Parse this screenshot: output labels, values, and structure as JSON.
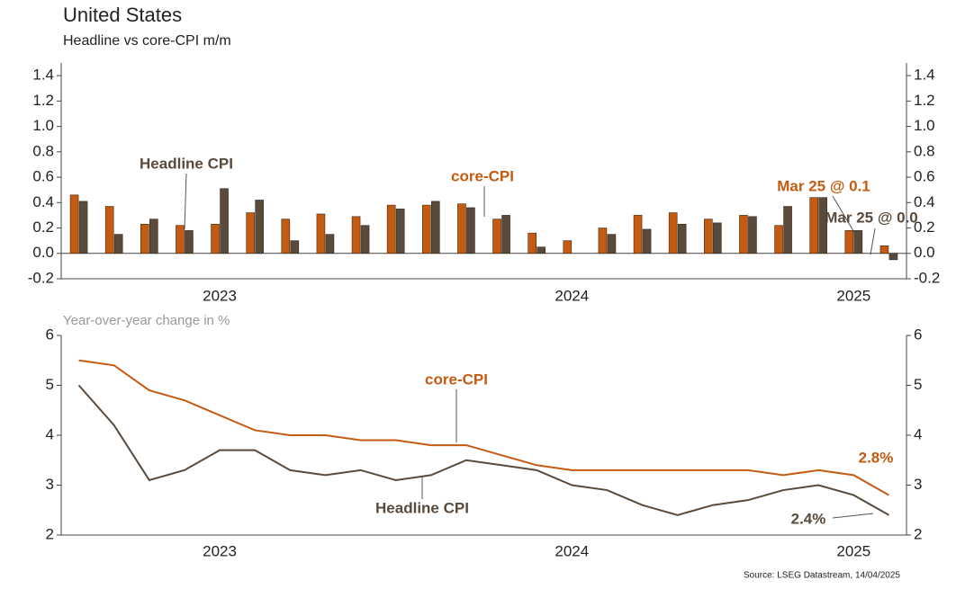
{
  "title": "United States",
  "chart_data": [
    {
      "type": "bar",
      "subtitle": "Headline vs core-CPI m/m",
      "categories": [
        null,
        null,
        null,
        null,
        "2023",
        null,
        null,
        null,
        null,
        null,
        null,
        null,
        null,
        null,
        "2024",
        null,
        null,
        null,
        null,
        null,
        null,
        null,
        "2025",
        null
      ],
      "series": [
        {
          "name": "core-CPI",
          "color": "#c55a11",
          "values": [
            0.46,
            0.37,
            0.23,
            0.22,
            0.23,
            0.32,
            0.27,
            0.31,
            0.29,
            0.38,
            0.38,
            0.39,
            0.27,
            0.16,
            0.1,
            0.2,
            0.3,
            0.32,
            0.27,
            0.3,
            0.22,
            0.44,
            0.18,
            0.06
          ]
        },
        {
          "name": "Headline CPI",
          "color": "#594a3c",
          "values": [
            0.41,
            0.15,
            0.27,
            0.18,
            0.51,
            0.42,
            0.1,
            0.15,
            0.22,
            0.35,
            0.41,
            0.36,
            0.3,
            0.05,
            0,
            0.15,
            0.19,
            0.23,
            0.24,
            0.29,
            0.37,
            0.44,
            0.18,
            -0.05
          ]
        }
      ],
      "ylim": [
        -0.2,
        1.5
      ],
      "yticks": [
        -0.2,
        {
          "value": 0,
          "label": "0.0"
        },
        0.2,
        0.4,
        0.6,
        0.8,
        {
          "value": 1,
          "label": "1.0"
        },
        1.2,
        1.4
      ],
      "annotations": [
        {
          "text": "Mar 25 @ 0.1",
          "color": "#c55a11"
        },
        {
          "text": "Mar 25 @ 0.0",
          "color": "#594a3c"
        }
      ]
    },
    {
      "type": "line",
      "subtitle": "Year-over-year change in %",
      "categories": [
        null,
        null,
        null,
        null,
        "2023",
        null,
        null,
        null,
        null,
        null,
        null,
        null,
        null,
        null,
        "2024",
        null,
        null,
        null,
        null,
        null,
        null,
        null,
        "2025",
        null
      ],
      "series": [
        {
          "name": "core-CPI",
          "color": "#c55a11",
          "values": [
            5.5,
            5.4,
            4.9,
            4.7,
            4.4,
            4.1,
            4.0,
            4.0,
            3.9,
            3.9,
            3.8,
            3.8,
            3.6,
            3.4,
            3.3,
            3.3,
            3.3,
            3.3,
            3.3,
            3.3,
            3.2,
            3.3,
            3.2,
            2.8
          ],
          "value_labels": [
            null,
            null,
            null,
            null,
            null,
            null,
            null,
            null,
            null,
            null,
            null,
            null,
            null,
            null,
            null,
            null,
            null,
            null,
            null,
            null,
            null,
            null,
            null,
            "2.8%"
          ]
        },
        {
          "name": "Headline CPI",
          "color": "#594a3c",
          "values": [
            5.0,
            4.2,
            3.1,
            3.3,
            3.7,
            3.7,
            3.3,
            3.2,
            3.3,
            3.1,
            3.2,
            3.5,
            3.4,
            3.3,
            3.0,
            2.9,
            2.6,
            2.4,
            2.6,
            2.7,
            2.9,
            3.0,
            2.8,
            2.4
          ],
          "value_labels": [
            null,
            null,
            null,
            null,
            null,
            null,
            null,
            null,
            null,
            null,
            null,
            null,
            null,
            null,
            null,
            null,
            null,
            null,
            null,
            null,
            null,
            null,
            null,
            "2.4%"
          ]
        }
      ],
      "ylim": [
        2,
        6
      ],
      "yticks": [
        2,
        3,
        4,
        5,
        6
      ]
    }
  ],
  "source": "Source: LSEG Datastream, 14/04/2025"
}
